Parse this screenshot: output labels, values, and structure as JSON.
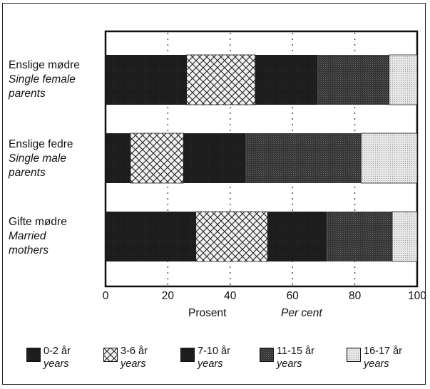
{
  "chart_data": {
    "type": "bar",
    "orientation": "horizontal",
    "stacked": true,
    "categories": [
      {
        "no": "Enslige mødre",
        "en": "Single female parents",
        "en_lines": [
          "Single female",
          "parents"
        ]
      },
      {
        "no": "Enslige fedre",
        "en": "Single male parents",
        "en_lines": [
          "Single male",
          "parents"
        ]
      },
      {
        "no": "Gifte mødre",
        "en": "Married mothers",
        "en_lines": [
          "Married",
          "mothers"
        ]
      }
    ],
    "series": [
      {
        "name": "0-2 år",
        "name_en": "years",
        "values": [
          26,
          8,
          29
        ]
      },
      {
        "name": "3-6 år",
        "name_en": "years",
        "values": [
          22,
          17,
          23
        ]
      },
      {
        "name": "7-10 år",
        "name_en": "years",
        "values": [
          20,
          20,
          19
        ]
      },
      {
        "name": "11-15 år",
        "name_en": "years",
        "values": [
          23,
          37,
          21
        ]
      },
      {
        "name": "16-17 år",
        "name_en": "years",
        "values": [
          9,
          18,
          8
        ]
      }
    ],
    "xlim": [
      0,
      100
    ],
    "xticks": [
      "0",
      "20",
      "40",
      "60",
      "80",
      "100"
    ],
    "xlabel": "Prosent",
    "xlabel_en": "Per cent",
    "grid": "vertical dotted",
    "legend_position": "bottom"
  },
  "colors": {
    "dark": "#1c1c1c",
    "hatch_fill": "#f2f2f2",
    "dotted_fill": "#d8d8d8",
    "frame": "#222222"
  }
}
